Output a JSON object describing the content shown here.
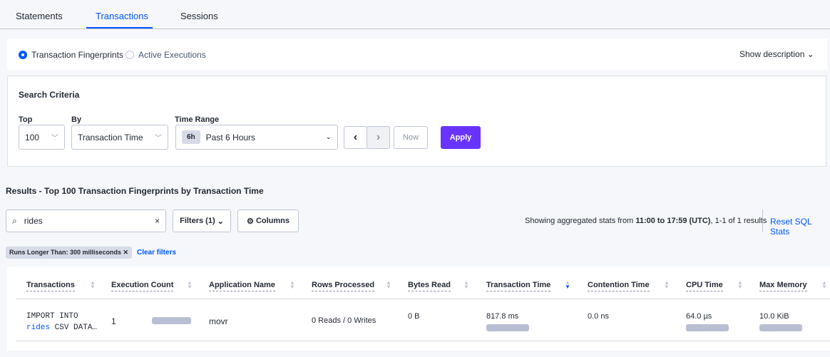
{
  "tabs": [
    "Statements",
    "Transactions",
    "Sessions"
  ],
  "view": {
    "options": [
      "Transaction Fingerprints",
      "Active Executions"
    ],
    "selected": 0,
    "show_description": "Show description"
  },
  "search": {
    "title": "Search Criteria",
    "top_label": "Top",
    "top_value": "100",
    "by_label": "By",
    "by_value": "Transaction Time",
    "range_label": "Time Range",
    "range_badge": "6h",
    "range_value": "Past 6 Hours",
    "now": "Now",
    "apply": "Apply"
  },
  "results": {
    "title": "Results - Top 100 Transaction Fingerprints by Transaction Time",
    "search_value": "rides",
    "filters": "Filters (1)",
    "columns": "Columns",
    "summary_pre": "Showing aggregated stats from ",
    "summary_range": "11:00 to 17:59 (UTC)",
    "summary_post": ", 1-1 of 1 results",
    "reset": "Reset SQL Stats",
    "filter_tag": "Runs Longer Than: 300 milliseconds",
    "clear": "Clear filters"
  },
  "table": {
    "headers": [
      "Transactions",
      "Execution Count",
      "Application Name",
      "Rows Processed",
      "Bytes Read",
      "Transaction Time",
      "Contention Time",
      "CPU Time",
      "Max Memory"
    ],
    "sorted_column": "Transaction Time",
    "row": {
      "txn_line1": "IMPORT INTO",
      "txn_kw": "rides",
      "txn_rest": " CSV DATA…",
      "exec_count": "1",
      "app": "movr",
      "rows": "0 Reads / 0 Writes",
      "bytes": "0 B",
      "txn_time": "817.8 ms",
      "contention": "0.0 ns",
      "cpu": "64.0 µs",
      "mem": "10.0 KiB"
    }
  },
  "colors": {
    "accent": "#0055ff",
    "apply": "#6933ff",
    "bar": "#b8bfd2"
  }
}
